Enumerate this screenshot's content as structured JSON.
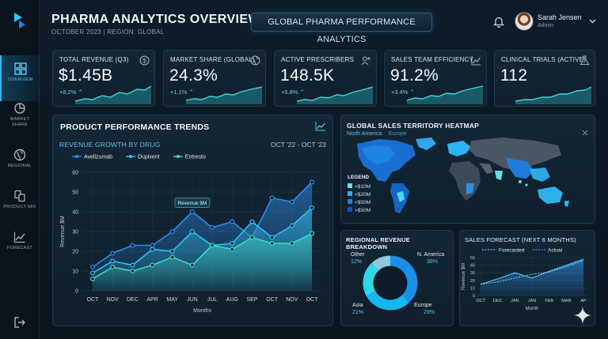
{
  "header": {
    "title": "PHARMA ANALYTICS OVERVIEW",
    "subtitle": "OCTOBER 2023 | REGION: GLOBAL",
    "banner": "GLOBAL PHARMA PERFORMANCE ANALYTICS"
  },
  "user": {
    "name": "Sarah Jensen",
    "role": "Admin"
  },
  "nav": [
    {
      "label": "OVERVIEW",
      "icon": "dashboard-icon",
      "active": true
    },
    {
      "label": "MARKET SHARE",
      "icon": "pie-chart-icon",
      "active": false
    },
    {
      "label": "REGIONAL",
      "icon": "globe-icon",
      "active": false
    },
    {
      "label": "PRODUCT MIX",
      "icon": "product-mix-icon",
      "active": false
    },
    {
      "label": "FORECAST",
      "icon": "trend-icon",
      "active": false
    }
  ],
  "kpis": [
    {
      "label": "TOTAL REVENUE (Q3)",
      "value": "$1.45B",
      "change": "+8.2%",
      "icon": "dollar-icon"
    },
    {
      "label": "MARKET SHARE (GLOBAL)",
      "value": "24.3%",
      "change": "+1.1%",
      "icon": "globe-icon"
    },
    {
      "label": "ACTIVE PRESCRIBERS",
      "value": "148.5K",
      "change": "+5.8%",
      "icon": "user-add-icon"
    },
    {
      "label": "SALES TEAM EFFICIENCY",
      "value": "91.2%",
      "change": "+3.4%",
      "icon": "trend-icon"
    },
    {
      "label": "CLINICAL TRIALS (ACTIVE)",
      "value": "112",
      "change": "",
      "icon": "flask-icon"
    }
  ],
  "trends": {
    "title": "PRODUCT PERFORMANCE TRENDS",
    "subtitle": "REVENUE GROWTH BY DRUG",
    "range": "OCT '22 - OCT '23",
    "tooltip": "Revenue $M"
  },
  "heatmap": {
    "title": "GLOBAL SALES TERRITORY HEATMAP",
    "regions": [
      "North America",
      "Europe"
    ],
    "legend_title": "LEGEND",
    "legend": [
      {
        "label": "<$10M",
        "color": "#5fe0ea"
      },
      {
        "label": "<$20M",
        "color": "#2fb0e8"
      },
      {
        "label": "<$50M",
        "color": "#1d7fd8"
      },
      {
        "label": ">$50M",
        "color": "#1652b8"
      }
    ]
  },
  "breakdown": {
    "title": "REGIONAL REVENUE BREAKDOWN",
    "slices": [
      {
        "name": "N. America",
        "pct": "38%",
        "value": 38,
        "color": "#1a8fe8"
      },
      {
        "name": "Europe",
        "pct": "29%",
        "value": 29,
        "color": "#16b6f0"
      },
      {
        "name": "Asia",
        "pct": "21%",
        "value": 21,
        "color": "#2fd6e8"
      },
      {
        "name": "Other",
        "pct": "12%",
        "value": 12,
        "color": "#8fc8de"
      }
    ]
  },
  "forecast": {
    "title": "SALES FORECAST (NEXT 6 MONTHS)",
    "legend_forecasted": "Forecasted",
    "legend_actual": "Actual"
  },
  "chart_data": [
    {
      "type": "line",
      "title": "PRODUCT PERFORMANCE TRENDS",
      "subtitle": "REVENUE GROWTH BY DRUG",
      "xlabel": "Months",
      "ylabel": "Revenue $M",
      "ylim": [
        0,
        60
      ],
      "yticks": [
        0,
        10,
        20,
        30,
        40,
        50,
        60
      ],
      "legend": "top",
      "grid": true,
      "categories": [
        "OCT",
        "NOV",
        "DEC",
        "APR",
        "MAY",
        "JUN",
        "JUL",
        "AUG",
        "SEP",
        "OCT",
        "NOV",
        "OCT"
      ],
      "series": [
        {
          "name": "Avelizumab",
          "color": "#2e8de8",
          "values": [
            12,
            19,
            23,
            23,
            30,
            40,
            32,
            35,
            27,
            47,
            45,
            55
          ]
        },
        {
          "name": "Dupixent",
          "color": "#33c0f2",
          "values": [
            9,
            15,
            13,
            21,
            20,
            30,
            23,
            24,
            35,
            27,
            33,
            42
          ]
        },
        {
          "name": "Entresto",
          "color": "#3dd9c7",
          "values": [
            6,
            12,
            10,
            13,
            17,
            13,
            23,
            21,
            27,
            24,
            24,
            29
          ]
        }
      ]
    },
    {
      "type": "pie",
      "title": "REGIONAL REVENUE BREAKDOWN",
      "categories": [
        "N. America",
        "Europe",
        "Asia",
        "Other"
      ],
      "values": [
        38,
        29,
        21,
        12
      ]
    },
    {
      "type": "line",
      "title": "SALES FORECAST (NEXT 6 MONTHS)",
      "xlabel": "Month",
      "ylabel": "Revenue $M",
      "ylim": [
        0,
        50
      ],
      "yticks": [
        0,
        10,
        20,
        30,
        40,
        50
      ],
      "categories": [
        "OCT",
        "DEC",
        "JAN",
        "JAN",
        "FEB",
        "MAR",
        "AP"
      ],
      "series": [
        {
          "name": "Forecasted",
          "values": [
            15,
            22,
            30,
            23,
            32,
            40,
            48
          ]
        },
        {
          "name": "Actual",
          "values": [
            15,
            18,
            23,
            28,
            31,
            38,
            46
          ]
        }
      ]
    }
  ]
}
